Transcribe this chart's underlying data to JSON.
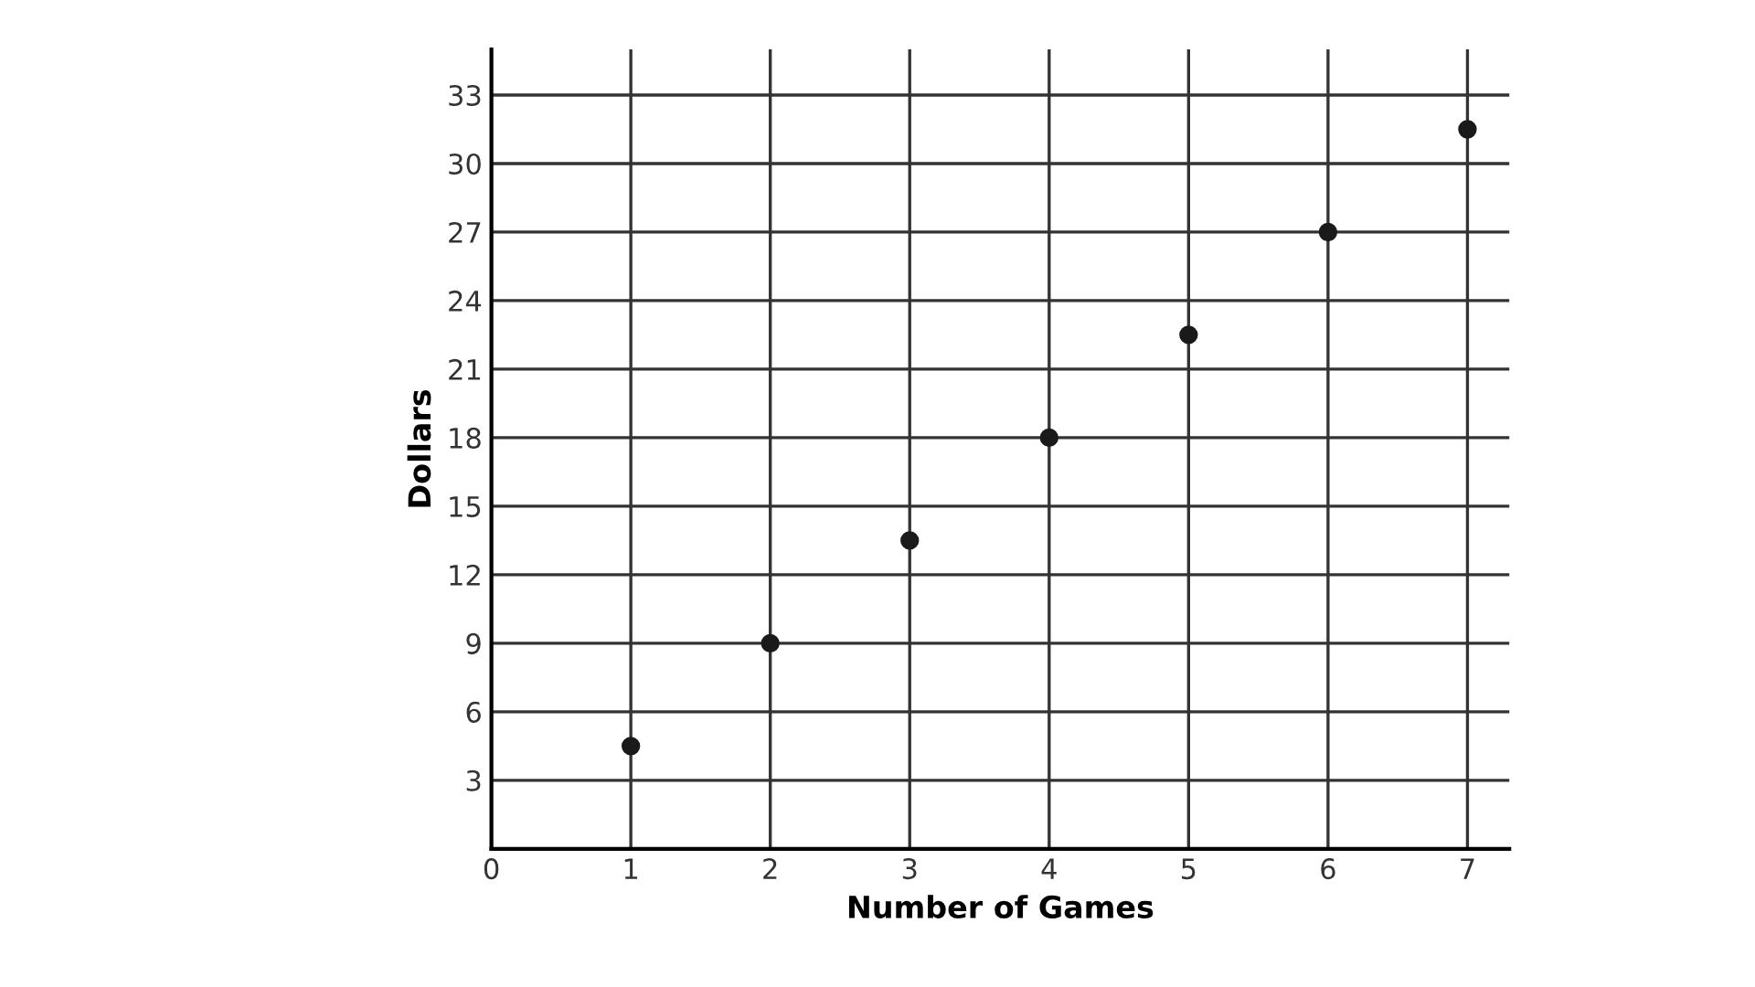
{
  "chart_data": {
    "type": "scatter",
    "xlabel": "Number of Games",
    "ylabel": "Dollars",
    "x": [
      1,
      2,
      3,
      4,
      5,
      6,
      7
    ],
    "series": [
      {
        "color": "#1a1a1a",
        "values": [
          4.5,
          9,
          13.5,
          18,
          22.5,
          27,
          31.5
        ]
      }
    ],
    "xlim": [
      0,
      7.3
    ],
    "ylim": [
      0,
      35
    ],
    "xticks": [
      0,
      1,
      2,
      3,
      4,
      5,
      6,
      7
    ],
    "yticks": [
      {
        "value": 0,
        "label": null
      },
      3,
      6,
      9,
      12,
      15,
      18,
      21,
      24,
      27,
      30,
      33
    ],
    "grid": true,
    "marker": "circle"
  }
}
